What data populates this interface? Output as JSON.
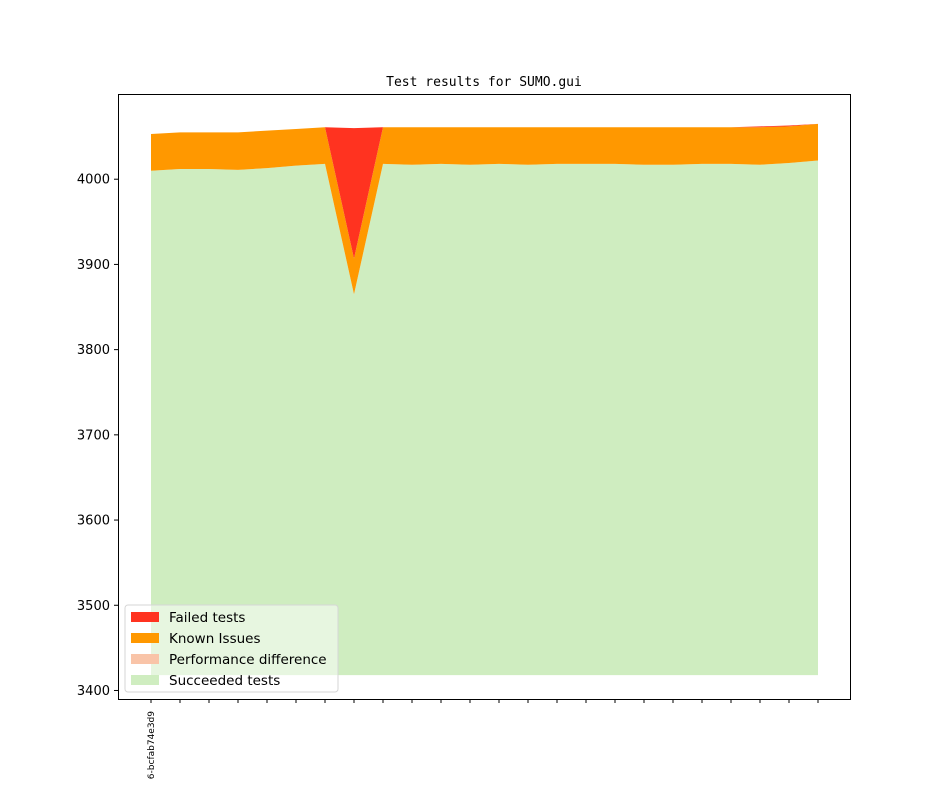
{
  "chart_data": {
    "type": "area",
    "title": "Test results for SUMO.gui",
    "xlabel": "",
    "ylabel": "",
    "ylim": [
      3390,
      4100
    ],
    "yticks": [
      3400,
      3500,
      3600,
      3700,
      3800,
      3900,
      4000
    ],
    "x": [
      0,
      1,
      2,
      3,
      4,
      5,
      6,
      7,
      8,
      9,
      10,
      11,
      12,
      13,
      14,
      15,
      16,
      17,
      18,
      19,
      20,
      21,
      22,
      23
    ],
    "xtick_labels": [
      "6-bcfab74e3d9",
      "",
      "",
      "",
      "",
      "",
      "",
      "",
      "",
      "",
      "",
      "",
      "",
      "",
      "",
      "",
      "",
      "",
      "",
      "",
      "",
      "",
      "",
      ""
    ],
    "baseline": 3418,
    "grid": false,
    "legend_position": "lower-left",
    "series": [
      {
        "name": "Succeeded tests",
        "color": "#cfedc0",
        "values": [
          4010,
          4012,
          4012,
          4011,
          4013,
          4016,
          4018,
          3865,
          4018,
          4017,
          4018,
          4017,
          4018,
          4017,
          4018,
          4018,
          4018,
          4017,
          4017,
          4018,
          4018,
          4017,
          4019,
          4022
        ]
      },
      {
        "name": "Performance difference",
        "color": "#f9c4a8",
        "values": [
          0,
          0,
          0,
          0,
          0,
          0,
          0,
          0,
          0,
          0,
          0,
          0,
          0,
          0,
          0,
          0,
          0,
          0,
          0,
          0,
          0,
          0,
          0,
          0
        ]
      },
      {
        "name": "Known Issues",
        "color": "#ff9800",
        "values": [
          43,
          43,
          43,
          44,
          44,
          43,
          43,
          42,
          43,
          44,
          43,
          44,
          43,
          44,
          43,
          43,
          43,
          44,
          44,
          43,
          43,
          44,
          43,
          43
        ]
      },
      {
        "name": "Failed tests",
        "color": "#ff3320",
        "values": [
          0,
          0,
          0,
          0,
          0,
          0,
          0,
          153,
          0,
          0,
          0,
          0,
          0,
          0,
          0,
          0,
          0,
          0,
          0,
          0,
          0,
          1,
          1,
          0
        ]
      }
    ]
  }
}
